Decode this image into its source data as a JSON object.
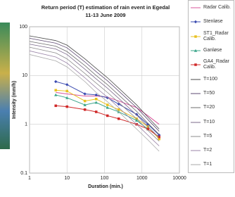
{
  "chart_data": {
    "type": "line",
    "title": "Return period (T) estimation of rain event in Egedal",
    "subtitle": "11-13 June 2009",
    "x_label": "Duration (min.)",
    "y_label": "Intensity (mm/h)",
    "log_x": true,
    "log_y": true,
    "grid": true,
    "xlim": [
      1,
      10000
    ],
    "xticks": [
      1,
      10,
      100,
      1000,
      10000
    ],
    "ylim": [
      0.1,
      100
    ],
    "yticks": [
      0.1,
      1,
      10,
      100
    ],
    "x": [
      1,
      5,
      10,
      30,
      60,
      120,
      240,
      720,
      1440,
      2880
    ],
    "series": [
      {
        "name": "Radar Calib.",
        "color": "#d9559b",
        "marker": "none",
        "values": [
          null,
          4.5,
          4.2,
          3.8,
          3.8,
          3.6,
          3.0,
          2.2,
          1.5,
          1.0
        ]
      },
      {
        "name": "Stenløse",
        "color": "#3b4bb0",
        "marker": "diamond",
        "values": [
          null,
          7.5,
          6.5,
          4.2,
          4.0,
          3.5,
          2.6,
          1.6,
          1.0,
          0.6
        ]
      },
      {
        "name": "ST1_Radar Calib.",
        "color": "#e8c020",
        "marker": "square",
        "values": [
          null,
          5.0,
          4.8,
          3.0,
          3.3,
          2.5,
          2.0,
          1.3,
          0.9,
          0.5
        ]
      },
      {
        "name": "Ganløse",
        "color": "#3aa58a",
        "marker": "triangle",
        "values": [
          null,
          4.0,
          3.5,
          2.5,
          2.8,
          2.2,
          1.8,
          1.2,
          0.8,
          null
        ]
      },
      {
        "name": "GA4_Radar Calib.",
        "color": "#d02828",
        "marker": "square",
        "values": [
          null,
          2.4,
          2.3,
          2.0,
          1.8,
          1.5,
          1.3,
          1.0,
          0.8,
          0.55
        ]
      },
      {
        "name": "T=100",
        "color": "#4a4a4a",
        "marker": "none",
        "values": [
          65,
          52,
          42,
          22,
          14,
          9,
          5.5,
          2.5,
          1.4,
          0.8
        ]
      },
      {
        "name": "T=50",
        "color": "#5e4a72",
        "marker": "none",
        "values": [
          58,
          46,
          37,
          19,
          12,
          7.8,
          4.8,
          2.2,
          1.25,
          0.72
        ]
      },
      {
        "name": "T=20",
        "color": "#6d6d6d",
        "marker": "none",
        "values": [
          50,
          40,
          31,
          16,
          10,
          6.5,
          4.0,
          1.85,
          1.05,
          0.62
        ]
      },
      {
        "name": "T=10",
        "color": "#7b6a8a",
        "marker": "none",
        "values": [
          44,
          35,
          27,
          13.5,
          8.5,
          5.5,
          3.4,
          1.55,
          0.9,
          0.53
        ]
      },
      {
        "name": "T=5",
        "color": "#8c8c8c",
        "marker": "none",
        "values": [
          38,
          29,
          22,
          11,
          7,
          4.5,
          2.8,
          1.3,
          0.75,
          0.45
        ]
      },
      {
        "name": "T=2",
        "color": "#9b86a8",
        "marker": "none",
        "values": [
          32,
          24,
          18,
          9,
          5.6,
          3.6,
          2.2,
          1.0,
          0.6,
          0.36
        ]
      },
      {
        "name": "T=1",
        "color": "#aaaaaa",
        "marker": "none",
        "values": [
          27,
          20,
          15,
          7.5,
          4.5,
          2.9,
          1.8,
          0.8,
          0.48,
          0.28
        ]
      }
    ]
  }
}
